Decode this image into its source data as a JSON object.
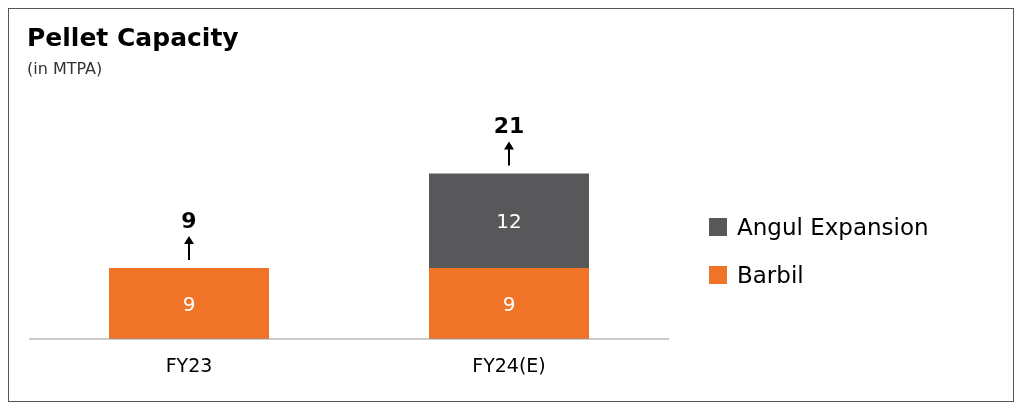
{
  "chart_data": {
    "type": "bar",
    "title": "Pellet Capacity",
    "subtitle": "(in MTPA)",
    "categories": [
      "FY23",
      "FY24(E)"
    ],
    "stacked": true,
    "series": [
      {
        "name": "Barbil",
        "color": "#f07427",
        "values": [
          9,
          9
        ]
      },
      {
        "name": "Angul Expansion",
        "color": "#58585a",
        "values": [
          null,
          12
        ]
      }
    ],
    "data_labels": true,
    "totals": [
      "9",
      "21"
    ],
    "legend": "right",
    "grid": false
  }
}
